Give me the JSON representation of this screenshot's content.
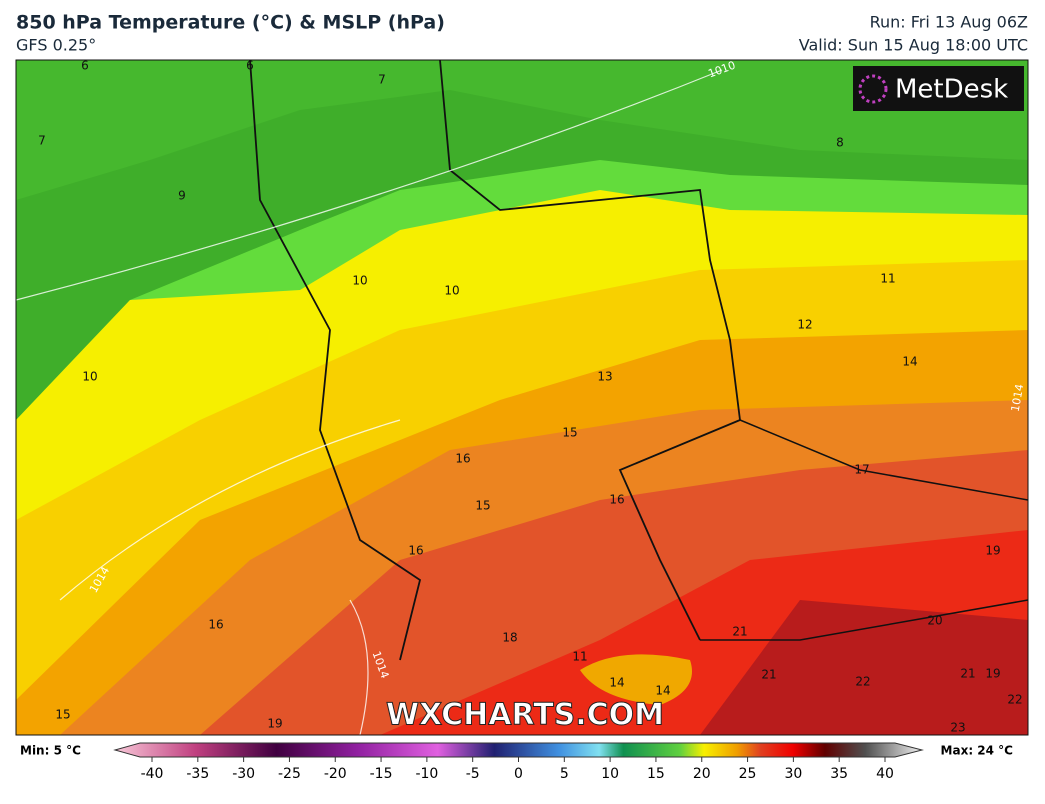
{
  "header": {
    "title": "850 hPa Temperature (°C) & MSLP (hPa)",
    "model": "GFS 0.25°",
    "run": "Run: Fri 13 Aug 06Z",
    "valid": "Valid: Sun 15 Aug 18:00 UTC"
  },
  "logo": "MetDesk",
  "watermark": "WXCHARTS.COM",
  "contour_labels": [
    6,
    6,
    7,
    7,
    8,
    9,
    10,
    10,
    11,
    12,
    10,
    13,
    14,
    15,
    16,
    15,
    16,
    17,
    16,
    19,
    16,
    18,
    20,
    21,
    11,
    14,
    14,
    21,
    22,
    21,
    19,
    22,
    15,
    19,
    23
  ],
  "isobar_labels": [
    1010,
    1014,
    1014,
    1014
  ],
  "legend": {
    "min": "Min: 5 °C",
    "max": "Max: 24 °C",
    "ticks": [
      -40,
      -35,
      -30,
      -25,
      -20,
      -15,
      -10,
      -5,
      0,
      5,
      10,
      15,
      20,
      25,
      30,
      35,
      40
    ]
  }
}
